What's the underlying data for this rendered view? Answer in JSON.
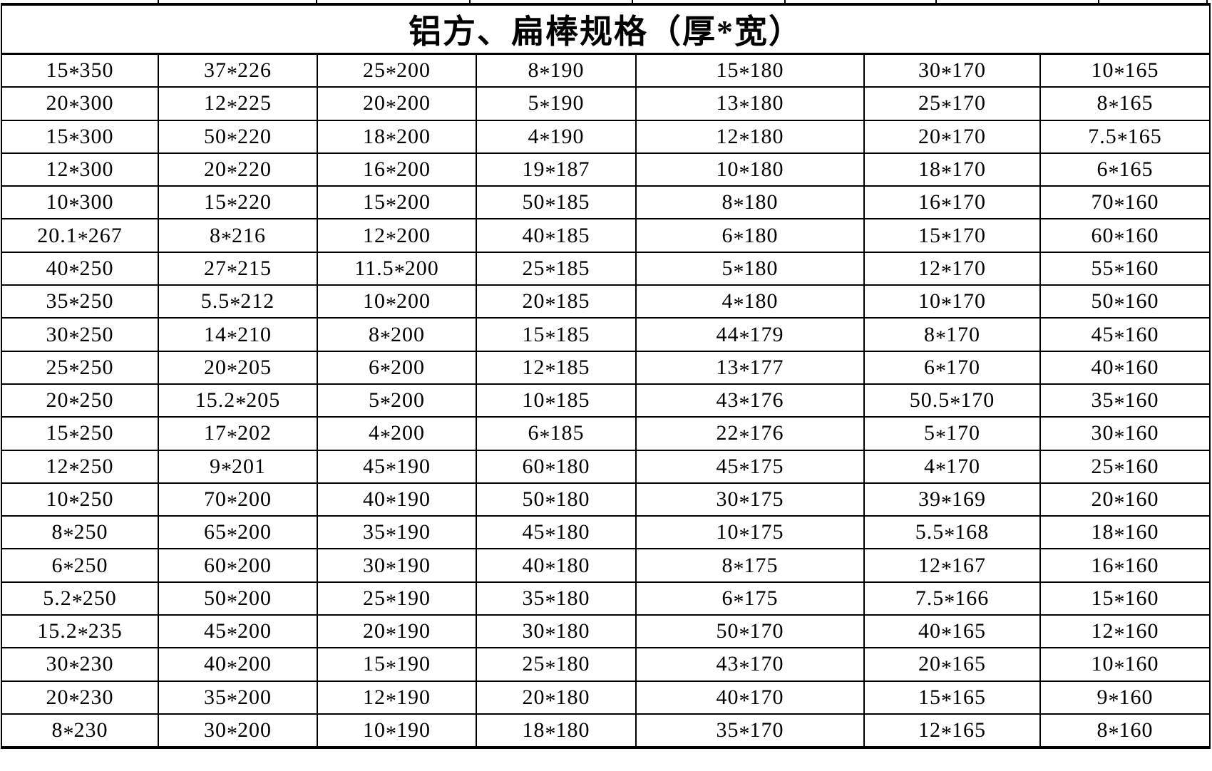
{
  "title": "铝方、扁棒规格（厚*宽）",
  "table": {
    "columns": 7,
    "rows": [
      [
        "15*350",
        "37*226",
        "25*200",
        "8*190",
        "15*180",
        "30*170",
        "10*165"
      ],
      [
        "20*300",
        "12*225",
        "20*200",
        "5*190",
        "13*180",
        "25*170",
        "8*165"
      ],
      [
        "15*300",
        "50*220",
        "18*200",
        "4*190",
        "12*180",
        "20*170",
        "7.5*165"
      ],
      [
        "12*300",
        "20*220",
        "16*200",
        "19*187",
        "10*180",
        "18*170",
        "6*165"
      ],
      [
        "10*300",
        "15*220",
        "15*200",
        "50*185",
        "8*180",
        "16*170",
        "70*160"
      ],
      [
        "20.1*267",
        "8*216",
        "12*200",
        "40*185",
        "6*180",
        "15*170",
        "60*160"
      ],
      [
        "40*250",
        "27*215",
        "11.5*200",
        "25*185",
        "5*180",
        "12*170",
        "55*160"
      ],
      [
        "35*250",
        "5.5*212",
        "10*200",
        "20*185",
        "4*180",
        "10*170",
        "50*160"
      ],
      [
        "30*250",
        "14*210",
        "8*200",
        "15*185",
        "44*179",
        "8*170",
        "45*160"
      ],
      [
        "25*250",
        "20*205",
        "6*200",
        "12*185",
        "13*177",
        "6*170",
        "40*160"
      ],
      [
        "20*250",
        "15.2*205",
        "5*200",
        "10*185",
        "43*176",
        "50.5*170",
        "35*160"
      ],
      [
        "15*250",
        "17*202",
        "4*200",
        "6*185",
        "22*176",
        "5*170",
        "30*160"
      ],
      [
        "12*250",
        "9*201",
        "45*190",
        "60*180",
        "45*175",
        "4*170",
        "25*160"
      ],
      [
        "10*250",
        "70*200",
        "40*190",
        "50*180",
        "30*175",
        "39*169",
        "20*160"
      ],
      [
        "8*250",
        "65*200",
        "35*190",
        "45*180",
        "10*175",
        "5.5*168",
        "18*160"
      ],
      [
        "6*250",
        "60*200",
        "30*190",
        "40*180",
        "8*175",
        "12*167",
        "16*160"
      ],
      [
        "5.2*250",
        "50*200",
        "25*190",
        "35*180",
        "6*175",
        "7.5*166",
        "15*160"
      ],
      [
        "15.2*235",
        "45*200",
        "20*190",
        "30*180",
        "50*170",
        "40*165",
        "12*160"
      ],
      [
        "30*230",
        "40*200",
        "15*190",
        "25*180",
        "43*170",
        "20*165",
        "10*160"
      ],
      [
        "20*230",
        "35*200",
        "12*190",
        "20*180",
        "40*170",
        "15*165",
        "9*160"
      ],
      [
        "8*230",
        "30*200",
        "10*190",
        "18*180",
        "35*170",
        "12*165",
        "8*160"
      ]
    ]
  }
}
